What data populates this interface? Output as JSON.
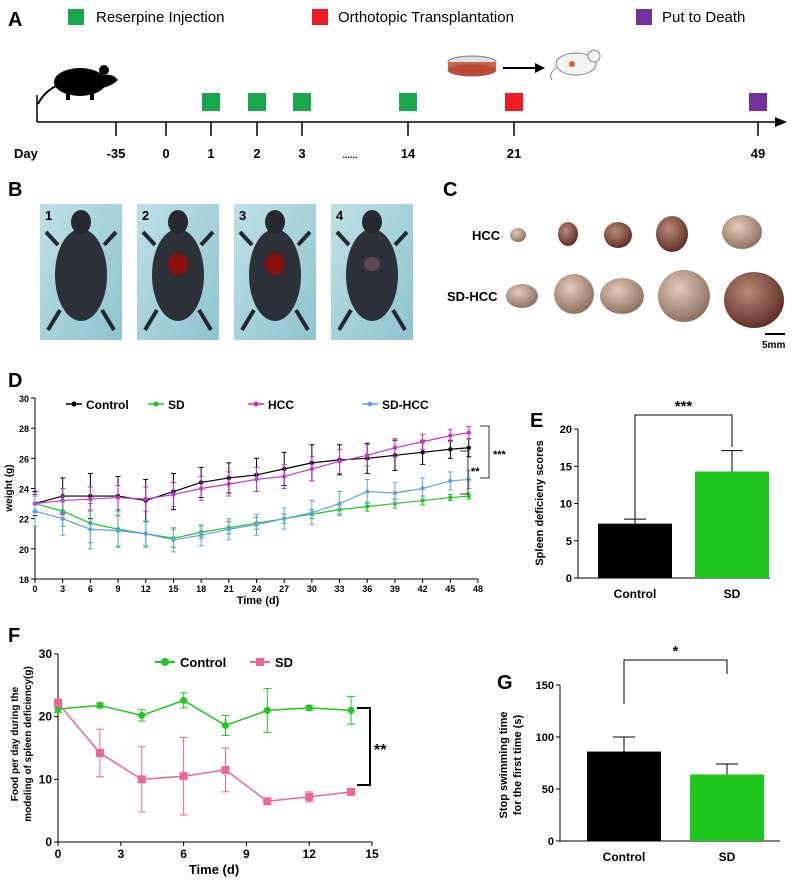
{
  "timeline": {
    "label": "A",
    "legend": [
      {
        "label": "Reserpine Injection",
        "color": "#1aa64b"
      },
      {
        "label": "Orthotopic  Transplantation",
        "color": "#ee1c24"
      },
      {
        "label": "Put to Death",
        "color": "#7030a0"
      }
    ],
    "axis_label": "Day",
    "days": [
      "-35",
      "0",
      "1",
      "2",
      "3",
      "......",
      "14",
      "21",
      "49"
    ],
    "markers": [
      {
        "day": "1",
        "type": "Reserpine Injection"
      },
      {
        "day": "2",
        "type": "Reserpine Injection"
      },
      {
        "day": "3",
        "type": "Reserpine Injection"
      },
      {
        "day": "14",
        "type": "Reserpine Injection"
      },
      {
        "day": "21",
        "type": "Orthotopic  Transplantation"
      },
      {
        "day": "49",
        "type": "Put to Death"
      }
    ]
  },
  "photos_b": {
    "label": "B",
    "numbers": [
      "1",
      "2",
      "3",
      "4"
    ]
  },
  "photos_c": {
    "label": "C",
    "rows": [
      "HCC",
      "SD-HCC"
    ],
    "scale": "5mm"
  },
  "panels": {
    "d": "D",
    "e": "E",
    "f": "F",
    "g": "G"
  },
  "chart_data": [
    {
      "panel": "D",
      "type": "line",
      "xlabel": "Time (d)",
      "ylabel": "weight (g)",
      "xlim": [
        0,
        48
      ],
      "ylim": [
        18,
        30
      ],
      "xticks": [
        0,
        3,
        6,
        9,
        12,
        15,
        18,
        21,
        24,
        27,
        30,
        33,
        36,
        39,
        42,
        45,
        48
      ],
      "yticks": [
        18,
        20,
        22,
        24,
        26,
        28,
        30
      ],
      "significance": [
        "***",
        "**"
      ],
      "series": [
        {
          "name": "Control",
          "color": "#000000",
          "x": [
            0,
            3,
            6,
            9,
            12,
            15,
            18,
            21,
            24,
            27,
            30,
            33,
            36,
            39,
            42,
            45,
            47
          ],
          "values": [
            23.0,
            23.5,
            23.5,
            23.5,
            23.2,
            23.8,
            24.4,
            24.7,
            24.9,
            25.3,
            25.7,
            25.9,
            26.0,
            26.2,
            26.4,
            26.6,
            26.7
          ],
          "errors": [
            0.8,
            1.2,
            1.5,
            1.3,
            1.4,
            1.2,
            1.0,
            1.0,
            1.1,
            1.1,
            1.2,
            1.0,
            1.0,
            1.0,
            0.8,
            0.6,
            0.6
          ]
        },
        {
          "name": "SD",
          "color": "#1ec81e",
          "x": [
            0,
            3,
            6,
            9,
            12,
            15,
            18,
            21,
            24,
            27,
            30,
            33,
            36,
            39,
            42,
            45,
            47
          ],
          "values": [
            23.0,
            22.5,
            21.7,
            21.3,
            21.0,
            20.7,
            21.1,
            21.4,
            21.7,
            22.0,
            22.3,
            22.6,
            22.8,
            23.0,
            23.2,
            23.4,
            23.5
          ],
          "errors": [
            0.5,
            1.0,
            1.3,
            1.2,
            0.8,
            0.6,
            0.4,
            0.4,
            0.4,
            0.3,
            0.3,
            0.3,
            0.3,
            0.3,
            0.3,
            0.2,
            0.2
          ]
        },
        {
          "name": "HCC",
          "color": "#c832c8",
          "x": [
            0,
            3,
            6,
            9,
            12,
            15,
            18,
            21,
            24,
            27,
            30,
            33,
            36,
            39,
            42,
            45,
            47
          ],
          "values": [
            23.0,
            23.2,
            23.3,
            23.4,
            23.3,
            23.6,
            24.0,
            24.3,
            24.6,
            24.8,
            25.3,
            25.8,
            26.2,
            26.7,
            27.1,
            27.5,
            27.7
          ],
          "errors": [
            0.6,
            0.8,
            0.8,
            0.8,
            0.8,
            0.8,
            0.8,
            0.8,
            0.8,
            0.8,
            0.8,
            0.8,
            0.7,
            0.6,
            0.5,
            0.4,
            0.4
          ]
        },
        {
          "name": "SD-HCC",
          "color": "#64a0f0",
          "x": [
            0,
            3,
            6,
            9,
            12,
            15,
            18,
            21,
            24,
            27,
            30,
            33,
            36,
            39,
            42,
            45,
            47
          ],
          "values": [
            22.5,
            22.0,
            21.3,
            21.2,
            21.0,
            20.6,
            20.9,
            21.3,
            21.6,
            22.0,
            22.4,
            23.0,
            23.8,
            23.7,
            24.0,
            24.5,
            24.6
          ],
          "errors": [
            1.0,
            1.1,
            1.3,
            1.0,
            0.9,
            0.8,
            0.7,
            0.7,
            0.7,
            0.7,
            0.8,
            0.8,
            0.8,
            0.7,
            0.7,
            0.6,
            0.6
          ]
        }
      ]
    },
    {
      "panel": "E",
      "type": "bar",
      "ylabel": "Spleen deficieny scores",
      "ylim": [
        0,
        20
      ],
      "yticks": [
        0,
        5,
        10,
        15,
        20
      ],
      "categories": [
        "Control",
        "SD"
      ],
      "values": [
        7.3,
        14.3
      ],
      "errors": [
        0.6,
        2.8
      ],
      "colors": [
        "#000000",
        "#1ec81e"
      ],
      "significance": "***"
    },
    {
      "panel": "F",
      "type": "line",
      "xlabel": "Time (d)",
      "ylabel": "Food per day during the modeling of spleen deficiency(g)",
      "xlim": [
        0,
        15
      ],
      "ylim": [
        0,
        30
      ],
      "xticks": [
        0,
        3,
        6,
        9,
        12,
        15
      ],
      "yticks": [
        0,
        10,
        20,
        30
      ],
      "significance": "**",
      "series": [
        {
          "name": "Control",
          "color": "#1ec81e",
          "x": [
            0,
            2,
            4,
            6,
            8,
            10,
            12,
            14
          ],
          "values": [
            21.2,
            21.8,
            20.2,
            22.6,
            18.6,
            21.0,
            21.4,
            21.0
          ],
          "errors": [
            0.5,
            0.4,
            0.9,
            1.2,
            1.6,
            3.5,
            0.4,
            2.2
          ]
        },
        {
          "name": "SD",
          "color": "#f06496",
          "x": [
            0,
            2,
            4,
            6,
            8,
            10,
            12,
            14
          ],
          "values": [
            22.2,
            14.2,
            10.0,
            10.5,
            11.5,
            6.5,
            7.2,
            8.0
          ],
          "errors": [
            0.6,
            3.8,
            5.2,
            6.2,
            3.5,
            0.5,
            0.8,
            0.5
          ]
        }
      ]
    },
    {
      "panel": "G",
      "type": "bar",
      "ylabel": "Stop swimming time for the first time  (s)",
      "ylim": [
        0,
        150
      ],
      "yticks": [
        0,
        50,
        100,
        150
      ],
      "categories": [
        "Control",
        "SD"
      ],
      "values": [
        86,
        64
      ],
      "errors": [
        14,
        10
      ],
      "colors": [
        "#000000",
        "#1ec81e"
      ],
      "significance": "*"
    }
  ]
}
